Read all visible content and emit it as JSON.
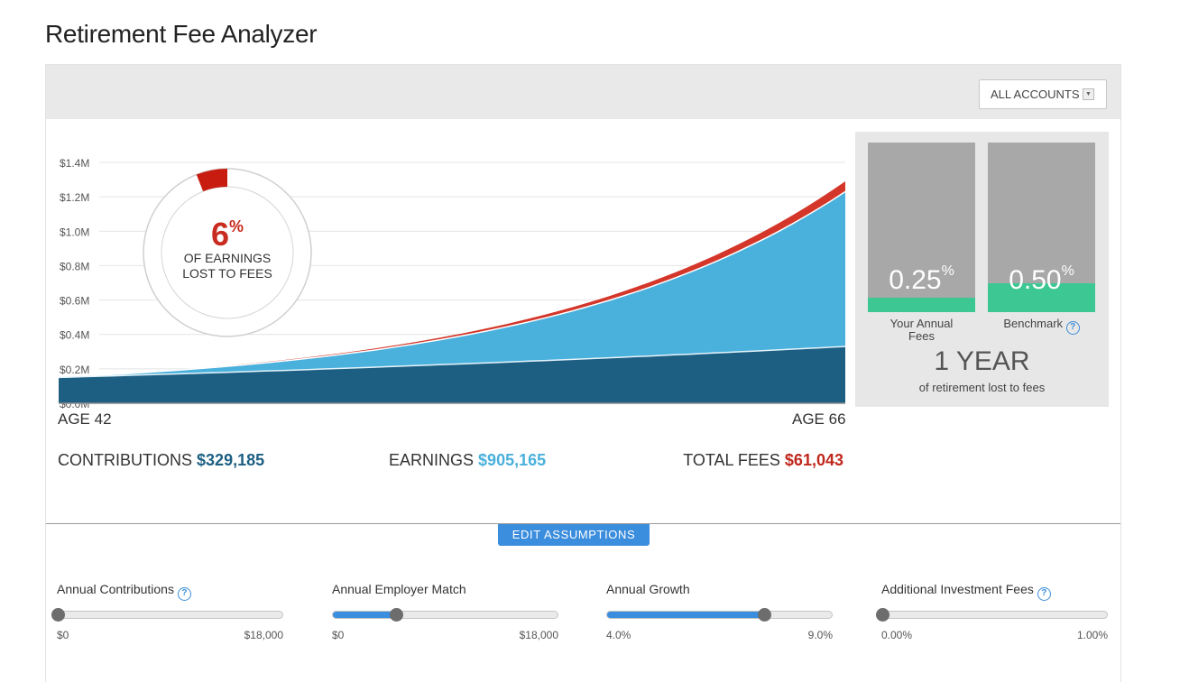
{
  "page": {
    "title": "Retirement Fee Analyzer"
  },
  "header": {
    "account_select": "ALL ACCOUNTS"
  },
  "colors": {
    "contributions": "#1d5f83",
    "earnings": "#4ab0dc",
    "fees": "#c0271c",
    "fee_bar": "#3cc793",
    "button": "#3b8ddd"
  },
  "chart_data": {
    "type": "area",
    "y_ticks": [
      "$1.4M",
      "$1.2M",
      "$1.0M",
      "$0.8M",
      "$0.6M",
      "$0.4M",
      "$0.2M",
      "$0.0M"
    ],
    "ylim": [
      0,
      1.4
    ],
    "xlim": [
      42,
      66
    ],
    "x_start_label": "AGE 42",
    "x_end_label": "AGE 66",
    "grid": true,
    "series": [
      {
        "values_at_start": 0.15,
        "values_at_end": 0.33
      },
      {
        "values_at_start": 0.15,
        "values_at_end": 1.23
      },
      {
        "values_at_start": 0.15,
        "values_at_end": 1.29
      }
    ],
    "donut": {
      "percent": 6,
      "pct_symbol": "%",
      "line1": "OF EARNINGS",
      "line2": "LOST TO FEES"
    }
  },
  "summary": {
    "contributions": {
      "label": "CONTRIBUTIONS",
      "value": "$329,185"
    },
    "earnings": {
      "label": "EARNINGS",
      "value": "$905,165"
    },
    "total_fees": {
      "label": "TOTAL FEES",
      "value": "$61,043"
    }
  },
  "fee_compare": {
    "yours": {
      "value": "0.25",
      "unit": "%",
      "caption_line1": "Your Annual",
      "caption_line2": "Fees",
      "level": 0.25
    },
    "benchmark": {
      "value": "0.50",
      "unit": "%",
      "caption": "Benchmark",
      "level": 0.5
    },
    "years": "1 YEAR",
    "years_caption": "of retirement lost to fees"
  },
  "edit_button": "EDIT ASSUMPTIONS",
  "sliders": [
    {
      "label": "Annual Contributions",
      "help": "?",
      "min": "$0",
      "max": "$18,000",
      "fraction": 0.0,
      "has_fill": false
    },
    {
      "label": "Annual Employer Match",
      "help": "",
      "min": "$0",
      "max": "$18,000",
      "fraction": 0.28,
      "has_fill": true
    },
    {
      "label": "Annual Growth",
      "help": "",
      "min": "4.0%",
      "max": "9.0%",
      "fraction": 0.7,
      "has_fill": true
    },
    {
      "label": "Additional Investment Fees",
      "help": "?",
      "min": "0.00%",
      "max": "1.00%",
      "fraction": 0.0,
      "has_fill": false
    }
  ]
}
